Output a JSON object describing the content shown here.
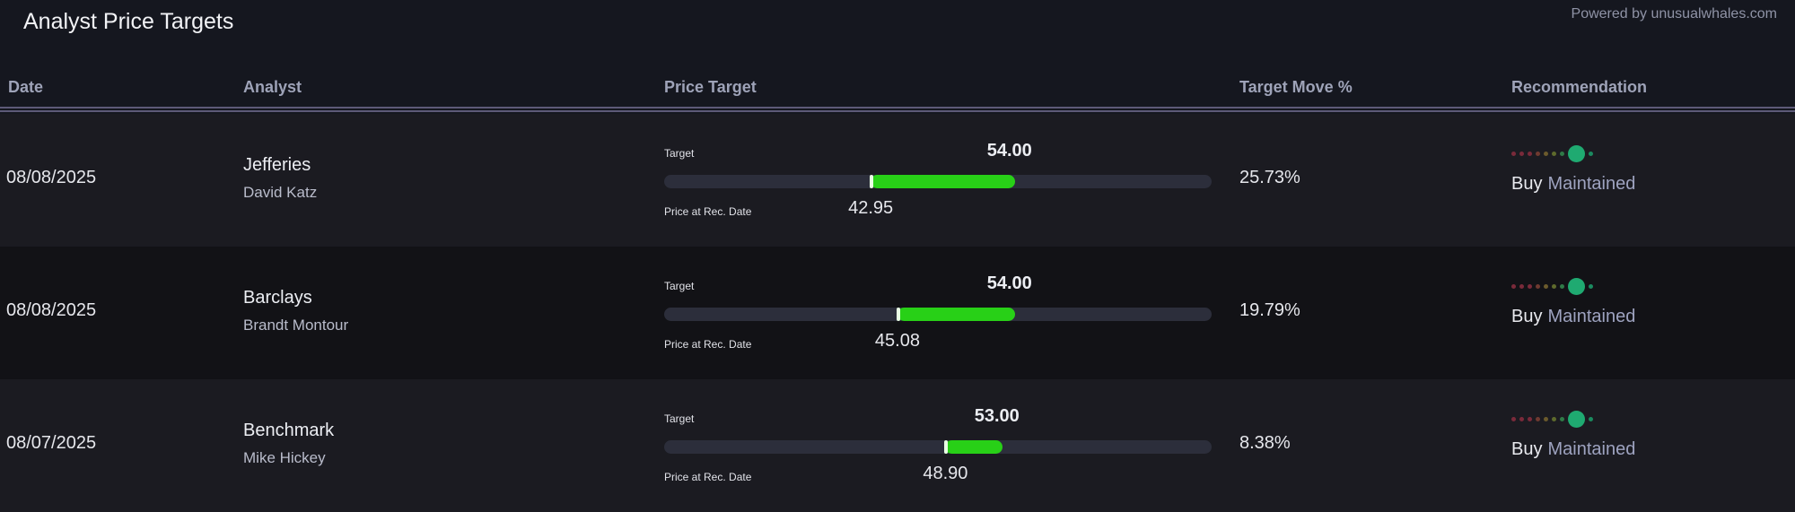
{
  "header": {
    "title": "Analyst Price Targets",
    "powered_by": "Powered by unusualwhales.com"
  },
  "columns": {
    "date": "Date",
    "analyst": "Analyst",
    "price_target": "Price Target",
    "target_move": "Target Move %",
    "recommendation": "Recommendation"
  },
  "labels": {
    "target": "Target",
    "price_at_rec": "Price at Rec. Date"
  },
  "colors": {
    "bar_fill": "#28d017",
    "bar_track": "#2c2e3b",
    "rating_active": "#1faa71",
    "rating_scale": [
      "#7a2a3a",
      "#7a2a3a",
      "#7a2a3a",
      "#6f3a30",
      "#6b5a2c",
      "#5e6a2c",
      "#2f7a47",
      "#1faa71",
      "#1b8a5f"
    ]
  },
  "scale": {
    "min_price": 26.5,
    "max_price": 70.1
  },
  "rows": [
    {
      "date": "08/08/2025",
      "firm": "Jefferies",
      "analyst": "David Katz",
      "target": "54.00",
      "price_at_rec": "42.95",
      "target_num": 54.0,
      "price_num": 42.95,
      "move": "25.73%",
      "rating": "Buy",
      "action": "Maintained"
    },
    {
      "date": "08/08/2025",
      "firm": "Barclays",
      "analyst": "Brandt Montour",
      "target": "54.00",
      "price_at_rec": "45.08",
      "target_num": 54.0,
      "price_num": 45.08,
      "move": "19.79%",
      "rating": "Buy",
      "action": "Maintained"
    },
    {
      "date": "08/07/2025",
      "firm": "Benchmark",
      "analyst": "Mike Hickey",
      "target": "53.00",
      "price_at_rec": "48.90",
      "target_num": 53.0,
      "price_num": 48.9,
      "move": "8.38%",
      "rating": "Buy",
      "action": "Maintained"
    }
  ]
}
